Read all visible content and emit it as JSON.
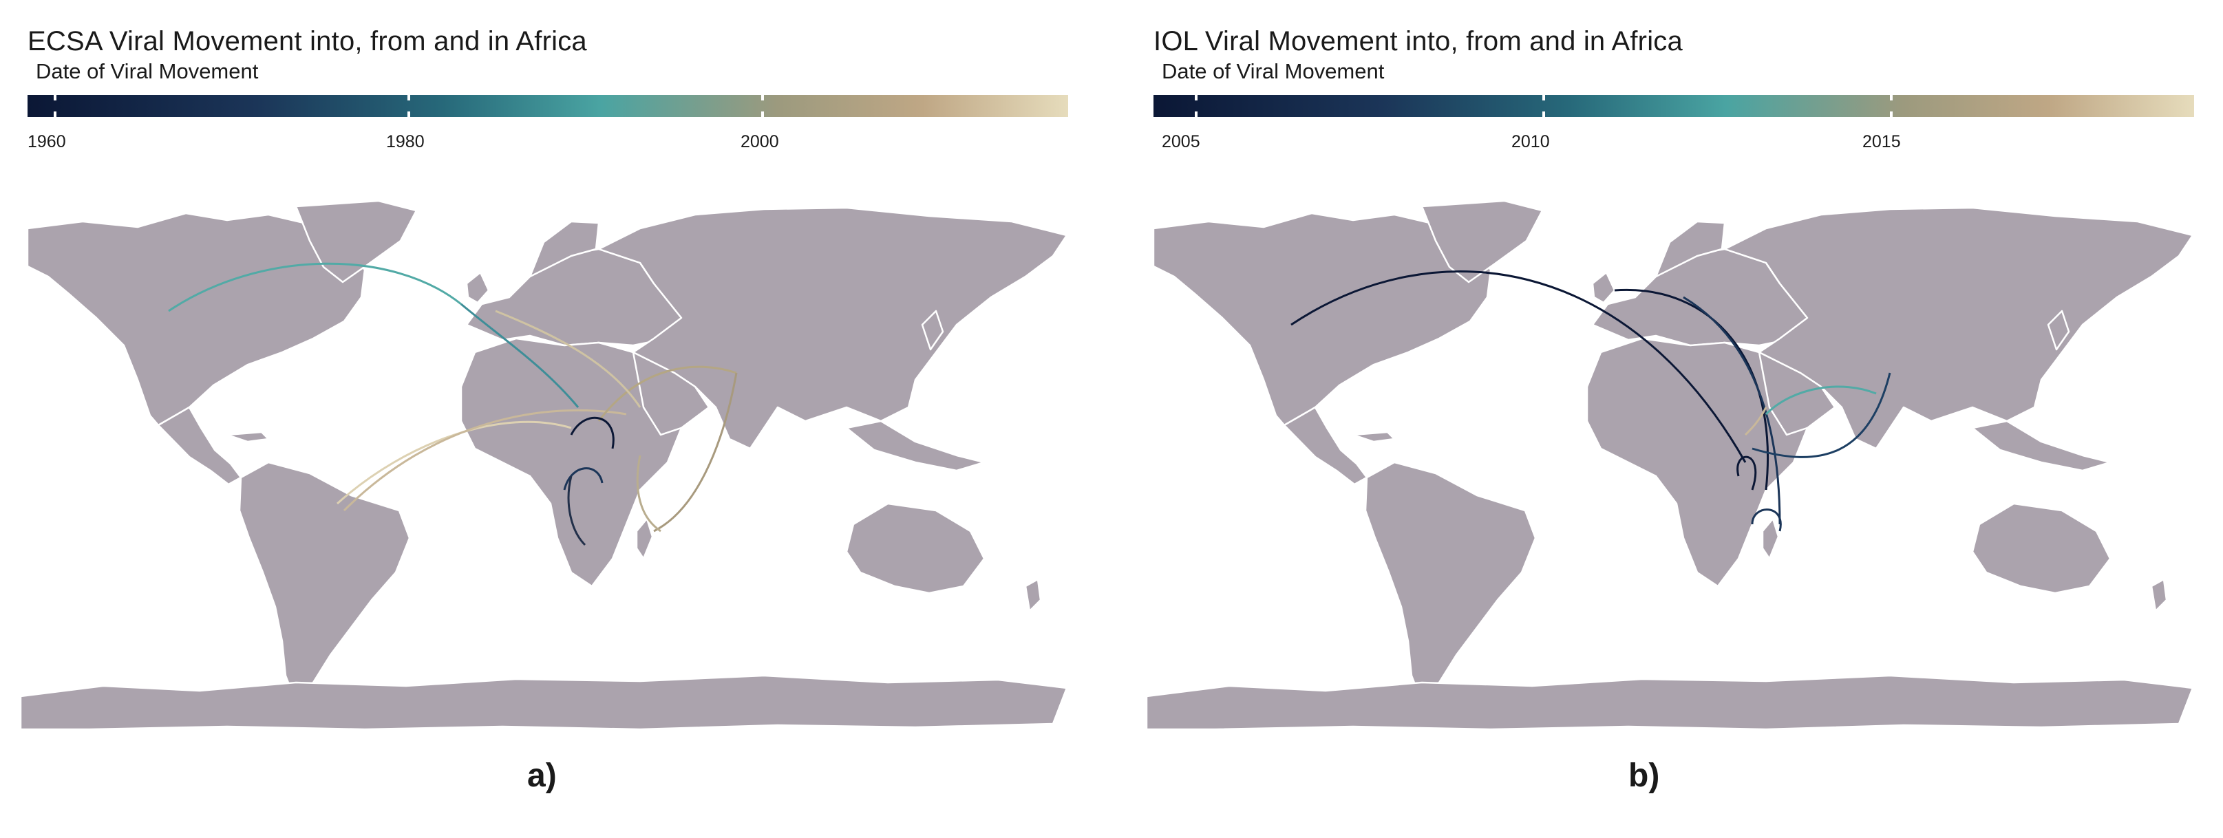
{
  "panels": [
    {
      "id": "a",
      "title": "ECSA Viral Movement into, from and in Africa",
      "legend_title": "Date of Viral Movement",
      "legend_ticks": [
        "1960",
        "1980",
        "2000"
      ],
      "label": "a)"
    },
    {
      "id": "b",
      "title": "IOL Viral Movement into, from and in Africa",
      "legend_title": "Date of Viral Movement",
      "legend_ticks": [
        "2005",
        "2010",
        "2015"
      ],
      "label": "b)"
    }
  ],
  "colors": {
    "land": "#aba3ad",
    "border": "#ffffff",
    "gradient": [
      "#0b1735",
      "#1d3f63",
      "#2e7e8a",
      "#52aaa6",
      "#9a9a80",
      "#c3ac8a",
      "#e6dcbc"
    ]
  }
}
